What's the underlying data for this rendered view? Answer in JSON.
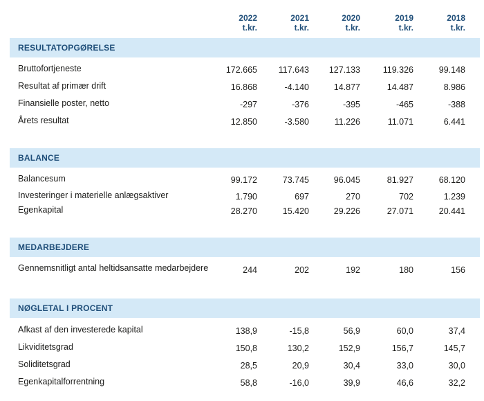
{
  "columns": [
    {
      "year": "2022",
      "unit": "t.kr."
    },
    {
      "year": "2021",
      "unit": "t.kr."
    },
    {
      "year": "2020",
      "unit": "t.kr."
    },
    {
      "year": "2019",
      "unit": "t.kr."
    },
    {
      "year": "2018",
      "unit": "t.kr."
    }
  ],
  "sections": [
    {
      "title": "RESULTATOPGØRELSE",
      "rows": [
        {
          "label": "Bruttofortjeneste",
          "values": [
            "172.665",
            "117.643",
            "127.133",
            "119.326",
            "99.148"
          ]
        },
        {
          "label": "Resultat af primær drift",
          "values": [
            "16.868",
            "-4.140",
            "14.877",
            "14.487",
            "8.986"
          ]
        },
        {
          "label": "Finansielle poster, netto",
          "values": [
            "-297",
            "-376",
            "-395",
            "-465",
            "-388"
          ]
        },
        {
          "label": "Årets resultat",
          "values": [
            "12.850",
            "-3.580",
            "11.226",
            "11.071",
            "6.441"
          ]
        }
      ]
    },
    {
      "title": "BALANCE",
      "rows": [
        {
          "label": "Balancesum",
          "values": [
            "99.172",
            "73.745",
            "96.045",
            "81.927",
            "68.120"
          ]
        },
        {
          "label": "Investeringer i materielle anlægsaktiver",
          "values": [
            "1.790",
            "697",
            "270",
            "702",
            "1.239"
          ]
        },
        {
          "label": "Egenkapital",
          "values": [
            "28.270",
            "15.420",
            "29.226",
            "27.071",
            "20.441"
          ]
        }
      ]
    },
    {
      "title": "MEDARBEJDERE",
      "rows": [
        {
          "label": "Gennemsnitligt antal heltidsansatte medarbejdere",
          "values": [
            "244",
            "202",
            "192",
            "180",
            "156"
          ]
        }
      ]
    },
    {
      "title": "NØGLETAL I PROCENT",
      "rows": [
        {
          "label": "Afkast af den investerede kapital",
          "values": [
            "138,9",
            "-15,8",
            "56,9",
            "60,0",
            "37,4"
          ]
        },
        {
          "label": "Likviditetsgrad",
          "values": [
            "150,8",
            "130,2",
            "152,9",
            "156,7",
            "145,7"
          ]
        },
        {
          "label": "Soliditetsgrad",
          "values": [
            "28,5",
            "20,9",
            "30,4",
            "33,0",
            "30,0"
          ]
        },
        {
          "label": "Egenkapitalforrentning",
          "values": [
            "58,8",
            "-16,0",
            "39,9",
            "46,6",
            "32,2"
          ]
        }
      ]
    }
  ]
}
